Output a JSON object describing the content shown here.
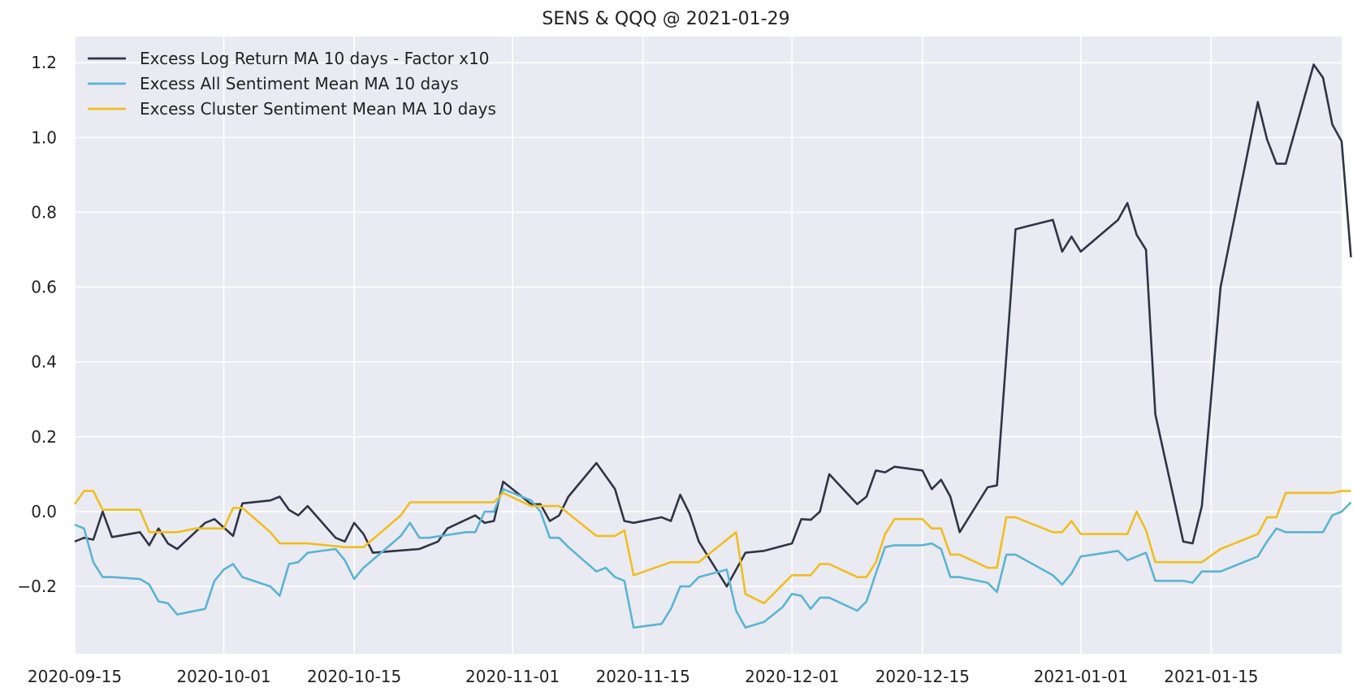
{
  "chart_data": {
    "type": "line",
    "title": "SENS & QQQ @ 2021-01-29",
    "xlabel": "",
    "ylabel": "",
    "x_type": "date",
    "xlim": [
      "2020-09-15",
      "2021-01-29"
    ],
    "ylim": [
      -0.38,
      1.27
    ],
    "x_ticks": [
      "2020-09-15",
      "2020-10-01",
      "2020-10-15",
      "2020-11-01",
      "2020-11-15",
      "2020-12-01",
      "2020-12-15",
      "2021-01-01",
      "2021-01-15"
    ],
    "x_tick_labels": [
      "2020-09-15",
      "2020-10-01",
      "2020-10-15",
      "2020-11-01",
      "2020-11-15",
      "2020-12-01",
      "2020-12-15",
      "2021-01-01",
      "2021-01-15"
    ],
    "y_ticks": [
      -0.2,
      0.0,
      0.2,
      0.4,
      0.6,
      0.8,
      1.0,
      1.2
    ],
    "y_tick_labels": [
      "−0.2",
      "0.0",
      "0.2",
      "0.4",
      "0.6",
      "0.8",
      "1.0",
      "1.2"
    ],
    "grid": true,
    "legend_position": "top-left",
    "background_color": "#eaeaf2",
    "series": [
      {
        "name": "Excess Log Return MA 10 days - Factor x10",
        "color": "#2e3546",
        "points": [
          [
            "2020-09-15",
            -0.08
          ],
          [
            "2020-09-16",
            -0.07
          ],
          [
            "2020-09-17",
            -0.075
          ],
          [
            "2020-09-18",
            0.0
          ],
          [
            "2020-09-19",
            -0.068
          ],
          [
            "2020-09-22",
            -0.055
          ],
          [
            "2020-09-23",
            -0.09
          ],
          [
            "2020-09-24",
            -0.045
          ],
          [
            "2020-09-25",
            -0.085
          ],
          [
            "2020-09-26",
            -0.1
          ],
          [
            "2020-09-29",
            -0.03
          ],
          [
            "2020-09-30",
            -0.02
          ],
          [
            "2020-10-02",
            -0.065
          ],
          [
            "2020-10-03",
            0.022
          ],
          [
            "2020-10-06",
            0.03
          ],
          [
            "2020-10-07",
            0.04
          ],
          [
            "2020-10-08",
            0.005
          ],
          [
            "2020-10-09",
            -0.01
          ],
          [
            "2020-10-10",
            0.015
          ],
          [
            "2020-10-13",
            -0.07
          ],
          [
            "2020-10-14",
            -0.08
          ],
          [
            "2020-10-15",
            -0.03
          ],
          [
            "2020-10-16",
            -0.06
          ],
          [
            "2020-10-17",
            -0.11
          ],
          [
            "2020-10-22",
            -0.1
          ],
          [
            "2020-10-24",
            -0.08
          ],
          [
            "2020-10-25",
            -0.045
          ],
          [
            "2020-10-28",
            -0.01
          ],
          [
            "2020-10-29",
            -0.03
          ],
          [
            "2020-10-30",
            -0.025
          ],
          [
            "2020-10-31",
            0.08
          ],
          [
            "2020-11-03",
            0.02
          ],
          [
            "2020-11-04",
            0.02
          ],
          [
            "2020-11-05",
            -0.025
          ],
          [
            "2020-11-06",
            -0.01
          ],
          [
            "2020-11-07",
            0.04
          ],
          [
            "2020-11-10",
            0.13
          ],
          [
            "2020-11-12",
            0.06
          ],
          [
            "2020-11-13",
            -0.025
          ],
          [
            "2020-11-14",
            -0.03
          ],
          [
            "2020-11-17",
            -0.015
          ],
          [
            "2020-11-18",
            -0.025
          ],
          [
            "2020-11-19",
            0.045
          ],
          [
            "2020-11-20",
            -0.005
          ],
          [
            "2020-11-21",
            -0.08
          ],
          [
            "2020-11-24",
            -0.2
          ],
          [
            "2020-11-26",
            -0.11
          ],
          [
            "2020-11-28",
            -0.105
          ],
          [
            "2020-12-01",
            -0.085
          ],
          [
            "2020-12-02",
            -0.02
          ],
          [
            "2020-12-03",
            -0.022
          ],
          [
            "2020-12-04",
            0.0
          ],
          [
            "2020-12-05",
            0.1
          ],
          [
            "2020-12-08",
            0.02
          ],
          [
            "2020-12-09",
            0.04
          ],
          [
            "2020-12-10",
            0.11
          ],
          [
            "2020-12-11",
            0.105
          ],
          [
            "2020-12-12",
            0.12
          ],
          [
            "2020-12-15",
            0.11
          ],
          [
            "2020-12-16",
            0.06
          ],
          [
            "2020-12-17",
            0.085
          ],
          [
            "2020-12-18",
            0.04
          ],
          [
            "2020-12-19",
            -0.055
          ],
          [
            "2020-12-22",
            0.065
          ],
          [
            "2020-12-23",
            0.07
          ],
          [
            "2020-12-25",
            0.755
          ],
          [
            "2020-12-29",
            0.78
          ],
          [
            "2020-12-30",
            0.695
          ],
          [
            "2020-12-31",
            0.735
          ],
          [
            "2021-01-01",
            0.695
          ],
          [
            "2021-01-05",
            0.78
          ],
          [
            "2021-01-06",
            0.825
          ],
          [
            "2021-01-07",
            0.74
          ],
          [
            "2021-01-08",
            0.7
          ],
          [
            "2021-01-09",
            0.26
          ],
          [
            "2021-01-12",
            -0.08
          ],
          [
            "2021-01-13",
            -0.085
          ],
          [
            "2021-01-14",
            0.015
          ],
          [
            "2021-01-16",
            0.6
          ],
          [
            "2021-01-20",
            1.095
          ],
          [
            "2021-01-21",
            0.995
          ],
          [
            "2021-01-22",
            0.93
          ],
          [
            "2021-01-23",
            0.93
          ],
          [
            "2021-01-26",
            1.195
          ],
          [
            "2021-01-27",
            1.16
          ],
          [
            "2021-01-28",
            1.035
          ],
          [
            "2021-01-29",
            0.99
          ],
          [
            "2021-01-30",
            0.68
          ]
        ]
      },
      {
        "name": "Excess All Sentiment Mean MA 10 days",
        "color": "#5ab4d2",
        "points": [
          [
            "2020-09-15",
            -0.035
          ],
          [
            "2020-09-16",
            -0.045
          ],
          [
            "2020-09-17",
            -0.135
          ],
          [
            "2020-09-18",
            -0.175
          ],
          [
            "2020-09-19",
            -0.175
          ],
          [
            "2020-09-22",
            -0.18
          ],
          [
            "2020-09-23",
            -0.195
          ],
          [
            "2020-09-24",
            -0.24
          ],
          [
            "2020-09-25",
            -0.245
          ],
          [
            "2020-09-26",
            -0.275
          ],
          [
            "2020-09-29",
            -0.26
          ],
          [
            "2020-09-30",
            -0.185
          ],
          [
            "2020-10-01",
            -0.155
          ],
          [
            "2020-10-02",
            -0.14
          ],
          [
            "2020-10-03",
            -0.175
          ],
          [
            "2020-10-06",
            -0.2
          ],
          [
            "2020-10-07",
            -0.225
          ],
          [
            "2020-10-08",
            -0.14
          ],
          [
            "2020-10-09",
            -0.135
          ],
          [
            "2020-10-10",
            -0.11
          ],
          [
            "2020-10-13",
            -0.1
          ],
          [
            "2020-10-14",
            -0.13
          ],
          [
            "2020-10-15",
            -0.18
          ],
          [
            "2020-10-16",
            -0.15
          ],
          [
            "2020-10-20",
            -0.065
          ],
          [
            "2020-10-21",
            -0.03
          ],
          [
            "2020-10-22",
            -0.07
          ],
          [
            "2020-10-23",
            -0.07
          ],
          [
            "2020-10-27",
            -0.055
          ],
          [
            "2020-10-28",
            -0.055
          ],
          [
            "2020-10-29",
            0.0
          ],
          [
            "2020-10-30",
            0.0
          ],
          [
            "2020-10-31",
            0.06
          ],
          [
            "2020-11-03",
            0.03
          ],
          [
            "2020-11-04",
            0.0
          ],
          [
            "2020-11-05",
            -0.07
          ],
          [
            "2020-11-06",
            -0.07
          ],
          [
            "2020-11-07",
            -0.095
          ],
          [
            "2020-11-10",
            -0.16
          ],
          [
            "2020-11-11",
            -0.15
          ],
          [
            "2020-11-12",
            -0.175
          ],
          [
            "2020-11-13",
            -0.185
          ],
          [
            "2020-11-14",
            -0.31
          ],
          [
            "2020-11-17",
            -0.3
          ],
          [
            "2020-11-18",
            -0.26
          ],
          [
            "2020-11-19",
            -0.2
          ],
          [
            "2020-11-20",
            -0.2
          ],
          [
            "2020-11-21",
            -0.175
          ],
          [
            "2020-11-24",
            -0.155
          ],
          [
            "2020-11-25",
            -0.265
          ],
          [
            "2020-11-26",
            -0.31
          ],
          [
            "2020-11-28",
            -0.295
          ],
          [
            "2020-11-30",
            -0.255
          ],
          [
            "2020-12-01",
            -0.22
          ],
          [
            "2020-12-02",
            -0.225
          ],
          [
            "2020-12-03",
            -0.26
          ],
          [
            "2020-12-04",
            -0.23
          ],
          [
            "2020-12-05",
            -0.23
          ],
          [
            "2020-12-08",
            -0.265
          ],
          [
            "2020-12-09",
            -0.24
          ],
          [
            "2020-12-10",
            -0.165
          ],
          [
            "2020-12-11",
            -0.095
          ],
          [
            "2020-12-12",
            -0.09
          ],
          [
            "2020-12-15",
            -0.09
          ],
          [
            "2020-12-16",
            -0.085
          ],
          [
            "2020-12-17",
            -0.1
          ],
          [
            "2020-12-18",
            -0.175
          ],
          [
            "2020-12-19",
            -0.175
          ],
          [
            "2020-12-22",
            -0.19
          ],
          [
            "2020-12-23",
            -0.215
          ],
          [
            "2020-12-24",
            -0.115
          ],
          [
            "2020-12-25",
            -0.115
          ],
          [
            "2020-12-29",
            -0.17
          ],
          [
            "2020-12-30",
            -0.195
          ],
          [
            "2020-12-31",
            -0.165
          ],
          [
            "2021-01-01",
            -0.12
          ],
          [
            "2021-01-05",
            -0.105
          ],
          [
            "2021-01-06",
            -0.13
          ],
          [
            "2021-01-07",
            -0.12
          ],
          [
            "2021-01-08",
            -0.11
          ],
          [
            "2021-01-09",
            -0.185
          ],
          [
            "2021-01-12",
            -0.185
          ],
          [
            "2021-01-13",
            -0.19
          ],
          [
            "2021-01-14",
            -0.16
          ],
          [
            "2021-01-16",
            -0.16
          ],
          [
            "2021-01-20",
            -0.12
          ],
          [
            "2021-01-21",
            -0.08
          ],
          [
            "2021-01-22",
            -0.045
          ],
          [
            "2021-01-23",
            -0.055
          ],
          [
            "2021-01-27",
            -0.055
          ],
          [
            "2021-01-28",
            -0.01
          ],
          [
            "2021-01-29",
            0.0
          ],
          [
            "2021-01-30",
            0.025
          ]
        ]
      },
      {
        "name": "Excess Cluster Sentiment Mean MA 10 days",
        "color": "#f0be1e",
        "points": [
          [
            "2020-09-15",
            0.02
          ],
          [
            "2020-09-16",
            0.055
          ],
          [
            "2020-09-17",
            0.055
          ],
          [
            "2020-09-18",
            0.005
          ],
          [
            "2020-09-22",
            0.005
          ],
          [
            "2020-09-23",
            -0.055
          ],
          [
            "2020-09-24",
            -0.055
          ],
          [
            "2020-09-26",
            -0.055
          ],
          [
            "2020-09-28",
            -0.045
          ],
          [
            "2020-10-01",
            -0.045
          ],
          [
            "2020-10-02",
            0.01
          ],
          [
            "2020-10-03",
            0.01
          ],
          [
            "2020-10-06",
            -0.055
          ],
          [
            "2020-10-07",
            -0.085
          ],
          [
            "2020-10-10",
            -0.085
          ],
          [
            "2020-10-14",
            -0.095
          ],
          [
            "2020-10-16",
            -0.095
          ],
          [
            "2020-10-20",
            -0.01
          ],
          [
            "2020-10-21",
            0.025
          ],
          [
            "2020-10-30",
            0.025
          ],
          [
            "2020-10-31",
            0.05
          ],
          [
            "2020-11-03",
            0.015
          ],
          [
            "2020-11-06",
            0.015
          ],
          [
            "2020-11-07",
            -0.005
          ],
          [
            "2020-11-10",
            -0.065
          ],
          [
            "2020-11-12",
            -0.065
          ],
          [
            "2020-11-13",
            -0.05
          ],
          [
            "2020-11-14",
            -0.17
          ],
          [
            "2020-11-18",
            -0.135
          ],
          [
            "2020-11-21",
            -0.135
          ],
          [
            "2020-11-25",
            -0.055
          ],
          [
            "2020-11-26",
            -0.22
          ],
          [
            "2020-11-28",
            -0.245
          ],
          [
            "2020-12-01",
            -0.17
          ],
          [
            "2020-12-03",
            -0.17
          ],
          [
            "2020-12-04",
            -0.14
          ],
          [
            "2020-12-05",
            -0.14
          ],
          [
            "2020-12-08",
            -0.175
          ],
          [
            "2020-12-09",
            -0.175
          ],
          [
            "2020-12-10",
            -0.135
          ],
          [
            "2020-12-11",
            -0.06
          ],
          [
            "2020-12-12",
            -0.02
          ],
          [
            "2020-12-15",
            -0.02
          ],
          [
            "2020-12-16",
            -0.045
          ],
          [
            "2020-12-17",
            -0.045
          ],
          [
            "2020-12-18",
            -0.115
          ],
          [
            "2020-12-19",
            -0.115
          ],
          [
            "2020-12-22",
            -0.15
          ],
          [
            "2020-12-23",
            -0.15
          ],
          [
            "2020-12-24",
            -0.015
          ],
          [
            "2020-12-25",
            -0.015
          ],
          [
            "2020-12-29",
            -0.055
          ],
          [
            "2020-12-30",
            -0.055
          ],
          [
            "2020-12-31",
            -0.025
          ],
          [
            "2021-01-01",
            -0.06
          ],
          [
            "2021-01-06",
            -0.06
          ],
          [
            "2021-01-07",
            0.0
          ],
          [
            "2021-01-08",
            -0.05
          ],
          [
            "2021-01-09",
            -0.135
          ],
          [
            "2021-01-14",
            -0.135
          ],
          [
            "2021-01-16",
            -0.1
          ],
          [
            "2021-01-20",
            -0.06
          ],
          [
            "2021-01-21",
            -0.015
          ],
          [
            "2021-01-22",
            -0.015
          ],
          [
            "2021-01-23",
            0.05
          ],
          [
            "2021-01-28",
            0.05
          ],
          [
            "2021-01-29",
            0.055
          ],
          [
            "2021-01-30",
            0.055
          ]
        ]
      }
    ]
  }
}
